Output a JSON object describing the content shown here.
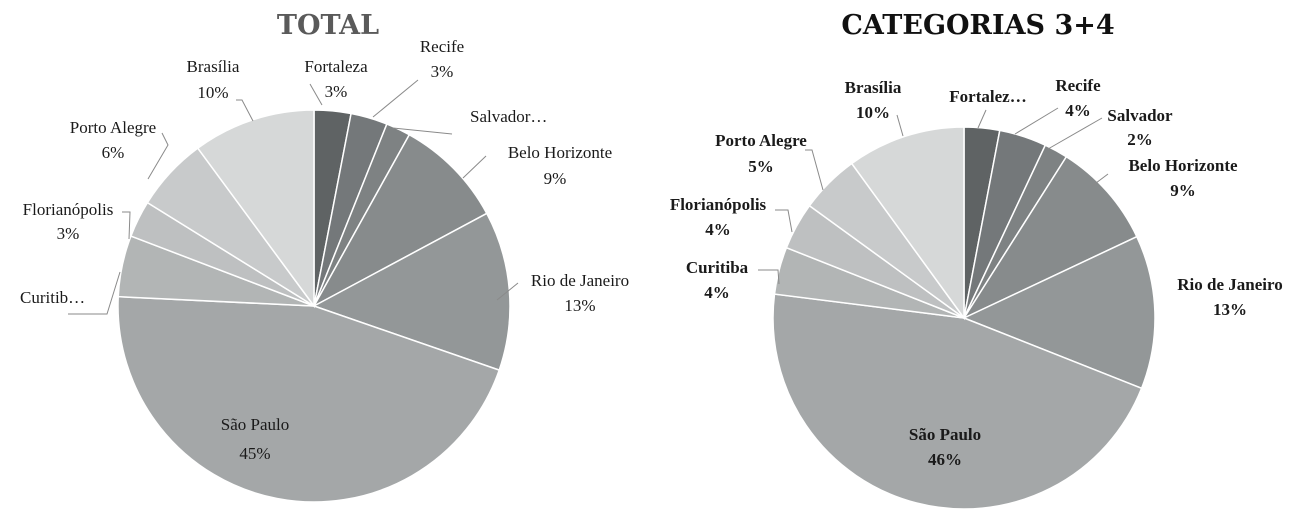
{
  "chart_data": [
    {
      "type": "pie",
      "title": "TOTAL",
      "slices": [
        {
          "label": "Fortaleza",
          "value": 3,
          "value_label": "3%",
          "color": "#5f6364"
        },
        {
          "label": "Recife",
          "value": 3,
          "value_label": "3%",
          "color": "#74787a"
        },
        {
          "label": "Salvador…",
          "value": 2,
          "value_label": "",
          "color": "#7e8283"
        },
        {
          "label": "Belo Horizonte",
          "value": 9,
          "value_label": "9%",
          "color": "#878b8c"
        },
        {
          "label": "Rio de Janeiro",
          "value": 13,
          "value_label": "13%",
          "color": "#939798"
        },
        {
          "label": "São Paulo",
          "value": 45,
          "value_label": "45%",
          "color": "#a4a7a8"
        },
        {
          "label": "Curitib…",
          "value": 5,
          "value_label": "",
          "color": "#b2b5b5"
        },
        {
          "label": "Florianópolis",
          "value": 3,
          "value_label": "3%",
          "color": "#bec0c1"
        },
        {
          "label": "Porto Alegre",
          "value": 6,
          "value_label": "6%",
          "color": "#c8cacb"
        },
        {
          "label": "Brasília",
          "value": 10,
          "value_label": "10%",
          "color": "#d6d8d8"
        }
      ]
    },
    {
      "type": "pie",
      "title": "CATEGORIAS 3+4",
      "slices": [
        {
          "label": "Fortalez…",
          "value": 3,
          "value_label": "",
          "color": "#5f6364"
        },
        {
          "label": "Recife",
          "value": 4,
          "value_label": "4%",
          "color": "#74787a"
        },
        {
          "label": "Salvador",
          "value": 2,
          "value_label": "2%",
          "color": "#7e8283"
        },
        {
          "label": "Belo Horizonte",
          "value": 9,
          "value_label": "9%",
          "color": "#878b8c"
        },
        {
          "label": "Rio de Janeiro",
          "value": 13,
          "value_label": "13%",
          "color": "#939798"
        },
        {
          "label": "São Paulo",
          "value": 46,
          "value_label": "46%",
          "color": "#a4a7a8"
        },
        {
          "label": "Curitiba",
          "value": 4,
          "value_label": "4%",
          "color": "#b2b5b5"
        },
        {
          "label": "Florianópolis",
          "value": 4,
          "value_label": "4%",
          "color": "#bec0c1"
        },
        {
          "label": "Porto Alegre",
          "value": 5,
          "value_label": "5%",
          "color": "#c8cacb"
        },
        {
          "label": "Brasília",
          "value": 10,
          "value_label": "10%",
          "color": "#d6d8d8"
        }
      ]
    }
  ]
}
